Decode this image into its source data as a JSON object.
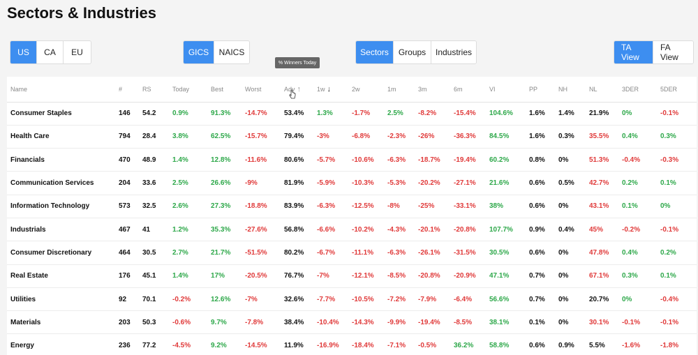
{
  "page_title": "Sectors & Industries",
  "region_buttons": [
    {
      "label": "US",
      "active": true
    },
    {
      "label": "CA",
      "active": false
    },
    {
      "label": "EU",
      "active": false
    }
  ],
  "classification_buttons": [
    {
      "label": "GICS",
      "active": true
    },
    {
      "label": "NAICS",
      "active": false
    }
  ],
  "level_buttons": [
    {
      "label": "Sectors",
      "active": true
    },
    {
      "label": "Groups",
      "active": false
    },
    {
      "label": "Industries",
      "active": false
    }
  ],
  "view_buttons": [
    {
      "label": "TA View",
      "active": true
    },
    {
      "label": "FA View",
      "active": false
    }
  ],
  "tooltip": "% Winners Today",
  "table": {
    "columns": [
      "Name",
      "#",
      "RS",
      "Today",
      "Best",
      "Worst",
      "Adv",
      "1w",
      "2w",
      "1m",
      "3m",
      "6m",
      "VI",
      "PP",
      "NH",
      "NL",
      "3DER",
      "5DER"
    ],
    "rows": [
      [
        "Consumer Staples",
        "146",
        "54.2",
        "0.9%",
        "91.3%",
        "-14.7%",
        "53.4%",
        "1.3%",
        "-1.7%",
        "2.5%",
        "-8.2%",
        "-15.4%",
        "104.6%",
        "1.6%",
        "1.4%",
        "21.9%",
        "0%",
        "-0.1%"
      ],
      [
        "Health Care",
        "794",
        "28.4",
        "3.8%",
        "62.5%",
        "-15.7%",
        "79.4%",
        "-3%",
        "-6.8%",
        "-2.3%",
        "-26%",
        "-36.3%",
        "84.5%",
        "1.6%",
        "0.3%",
        "35.5%",
        "0.4%",
        "0.3%"
      ],
      [
        "Financials",
        "470",
        "48.9",
        "1.4%",
        "12.8%",
        "-11.6%",
        "80.6%",
        "-5.7%",
        "-10.6%",
        "-6.3%",
        "-18.7%",
        "-19.4%",
        "60.2%",
        "0.8%",
        "0%",
        "51.3%",
        "-0.4%",
        "-0.3%"
      ],
      [
        "Communication Services",
        "204",
        "33.6",
        "2.5%",
        "26.6%",
        "-9%",
        "81.9%",
        "-5.9%",
        "-10.3%",
        "-5.3%",
        "-20.2%",
        "-27.1%",
        "21.6%",
        "0.6%",
        "0.5%",
        "42.7%",
        "0.2%",
        "0.1%"
      ],
      [
        "Information Technology",
        "573",
        "32.5",
        "2.6%",
        "27.3%",
        "-18.8%",
        "83.9%",
        "-6.3%",
        "-12.5%",
        "-8%",
        "-25%",
        "-33.1%",
        "38%",
        "0.6%",
        "0%",
        "43.1%",
        "0.1%",
        "0%"
      ],
      [
        "Industrials",
        "467",
        "41",
        "1.2%",
        "35.3%",
        "-27.6%",
        "56.8%",
        "-6.6%",
        "-10.2%",
        "-4.3%",
        "-20.1%",
        "-20.8%",
        "107.7%",
        "0.9%",
        "0.4%",
        "45%",
        "-0.2%",
        "-0.1%"
      ],
      [
        "Consumer Discretionary",
        "464",
        "30.5",
        "2.7%",
        "21.7%",
        "-51.5%",
        "80.2%",
        "-6.7%",
        "-11.1%",
        "-6.3%",
        "-26.1%",
        "-31.5%",
        "30.5%",
        "0.6%",
        "0%",
        "47.8%",
        "0.4%",
        "0.2%"
      ],
      [
        "Real Estate",
        "176",
        "45.1",
        "1.4%",
        "17%",
        "-20.5%",
        "76.7%",
        "-7%",
        "-12.1%",
        "-8.5%",
        "-20.8%",
        "-20.9%",
        "47.1%",
        "0.7%",
        "0%",
        "67.1%",
        "0.3%",
        "0.1%"
      ],
      [
        "Utilities",
        "92",
        "70.1",
        "-0.2%",
        "12.6%",
        "-7%",
        "32.6%",
        "-7.7%",
        "-10.5%",
        "-7.2%",
        "-7.9%",
        "-6.4%",
        "56.6%",
        "0.7%",
        "0%",
        "20.7%",
        "0%",
        "-0.4%"
      ],
      [
        "Materials",
        "203",
        "50.3",
        "-0.6%",
        "9.7%",
        "-7.8%",
        "38.4%",
        "-10.4%",
        "-14.3%",
        "-9.9%",
        "-19.4%",
        "-8.5%",
        "38.1%",
        "0.1%",
        "0%",
        "30.1%",
        "-0.1%",
        "-0.1%"
      ],
      [
        "Energy",
        "236",
        "77.2",
        "-4.5%",
        "9.2%",
        "-14.5%",
        "11.9%",
        "-16.9%",
        "-18.4%",
        "-7.1%",
        "-0.5%",
        "36.2%",
        "58.8%",
        "0.6%",
        "0.9%",
        "5.5%",
        "-1.6%",
        "-1.8%"
      ]
    ],
    "cell_colors": [
      [
        "",
        "",
        "",
        "pos",
        "pos",
        "neg",
        "",
        "pos",
        "neg",
        "pos",
        "neg",
        "neg",
        "pos",
        "",
        "",
        "",
        "pos",
        "neg"
      ],
      [
        "",
        "",
        "",
        "pos",
        "pos",
        "neg",
        "",
        "neg",
        "neg",
        "neg",
        "neg",
        "neg",
        "pos",
        "",
        "",
        "neg",
        "pos",
        "pos"
      ],
      [
        "",
        "",
        "",
        "pos",
        "pos",
        "neg",
        "",
        "neg",
        "neg",
        "neg",
        "neg",
        "neg",
        "pos",
        "",
        "",
        "neg",
        "neg",
        "neg"
      ],
      [
        "",
        "",
        "",
        "pos",
        "pos",
        "neg",
        "",
        "neg",
        "neg",
        "neg",
        "neg",
        "neg",
        "pos",
        "",
        "",
        "neg",
        "pos",
        "pos"
      ],
      [
        "",
        "",
        "",
        "pos",
        "pos",
        "neg",
        "",
        "neg",
        "neg",
        "neg",
        "neg",
        "neg",
        "pos",
        "",
        "",
        "neg",
        "pos",
        "pos"
      ],
      [
        "",
        "",
        "",
        "pos",
        "pos",
        "neg",
        "",
        "neg",
        "neg",
        "neg",
        "neg",
        "neg",
        "pos",
        "",
        "",
        "neg",
        "neg",
        "neg"
      ],
      [
        "",
        "",
        "",
        "pos",
        "pos",
        "neg",
        "",
        "neg",
        "neg",
        "neg",
        "neg",
        "neg",
        "pos",
        "",
        "",
        "neg",
        "pos",
        "pos"
      ],
      [
        "",
        "",
        "",
        "pos",
        "pos",
        "neg",
        "",
        "neg",
        "neg",
        "neg",
        "neg",
        "neg",
        "pos",
        "",
        "",
        "neg",
        "pos",
        "pos"
      ],
      [
        "",
        "",
        "",
        "neg",
        "pos",
        "neg",
        "",
        "neg",
        "neg",
        "neg",
        "neg",
        "neg",
        "pos",
        "",
        "",
        "",
        "pos",
        "neg"
      ],
      [
        "",
        "",
        "",
        "neg",
        "pos",
        "neg",
        "",
        "neg",
        "neg",
        "neg",
        "neg",
        "neg",
        "pos",
        "",
        "",
        "neg",
        "neg",
        "neg"
      ],
      [
        "",
        "",
        "",
        "neg",
        "pos",
        "neg",
        "",
        "neg",
        "neg",
        "neg",
        "neg",
        "pos",
        "pos",
        "",
        "",
        "",
        "neg",
        "neg"
      ]
    ]
  },
  "colors": {
    "accent": "#3d8ef0",
    "positive": "#2ea84a",
    "negative": "#e03a3a"
  }
}
